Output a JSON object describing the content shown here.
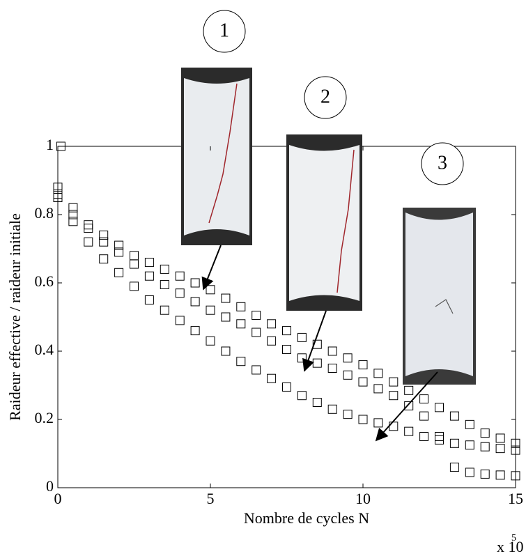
{
  "chart_data": {
    "type": "scatter",
    "xlabel": "Nombre de cycles N",
    "ylabel": "Raideur effective / raideur initiale",
    "x_multiplier": "x 10",
    "x_multiplier_exponent": "5",
    "annotations": [
      "1",
      "2",
      "3"
    ],
    "marker": "square",
    "color": "#000000",
    "xlim": [
      0,
      15
    ],
    "ylim": [
      0,
      1
    ],
    "xticks": [
      0,
      5,
      10,
      15
    ],
    "yticks": [
      0,
      0.2,
      0.4,
      0.6,
      0.8,
      1
    ],
    "series": [
      {
        "x": [
          0.1
        ],
        "values": [
          1
        ]
      },
      {
        "x": [
          0,
          0.5,
          1,
          1.5,
          2,
          2.5,
          3,
          3.5,
          4,
          4.5,
          5,
          5.5,
          6,
          6.5,
          7,
          7.5,
          8,
          8.5,
          9,
          9.5,
          10,
          10.5,
          11,
          11.5,
          12,
          12.5,
          13,
          13.5,
          14,
          14.5,
          15
        ],
        "values": [
          0.88,
          0.82,
          0.77,
          0.74,
          0.71,
          0.68,
          0.66,
          0.64,
          0.62,
          0.6,
          0.58,
          0.555,
          0.53,
          0.505,
          0.48,
          0.46,
          0.44,
          0.42,
          0.4,
          0.38,
          0.36,
          0.335,
          0.31,
          0.285,
          0.26,
          0.235,
          0.21,
          0.185,
          0.16,
          0.145,
          0.13
        ]
      },
      {
        "x": [
          0,
          0.5,
          1,
          1.5,
          2,
          2.5,
          3,
          3.5,
          4,
          4.5,
          5,
          5.5,
          6,
          6.5,
          7,
          7.5,
          8,
          8.5,
          9,
          9.5,
          10,
          10.5,
          11,
          11.5,
          12,
          12.5,
          13,
          13.5,
          14,
          14.5,
          15
        ],
        "values": [
          0.86,
          0.8,
          0.76,
          0.72,
          0.69,
          0.655,
          0.62,
          0.595,
          0.57,
          0.545,
          0.52,
          0.5,
          0.48,
          0.455,
          0.43,
          0.405,
          0.38,
          0.365,
          0.35,
          0.33,
          0.31,
          0.29,
          0.27,
          0.24,
          0.21,
          0.15,
          0.06,
          0.045,
          0.04,
          0.037,
          0.035
        ]
      },
      {
        "x": [
          0,
          0.5,
          1,
          1.5,
          2,
          2.5,
          3,
          3.5,
          4,
          4.5,
          5,
          5.5,
          6,
          6.5,
          7,
          7.5,
          8,
          8.5,
          9,
          9.5,
          10,
          10.5,
          11,
          11.5,
          12,
          12.5,
          13,
          13.5,
          14,
          14.5,
          15
        ],
        "values": [
          0.85,
          0.78,
          0.72,
          0.67,
          0.63,
          0.59,
          0.55,
          0.52,
          0.49,
          0.46,
          0.43,
          0.4,
          0.37,
          0.345,
          0.32,
          0.295,
          0.27,
          0.25,
          0.23,
          0.215,
          0.2,
          0.19,
          0.18,
          0.165,
          0.15,
          0.14,
          0.13,
          0.125,
          0.12,
          0.115,
          0.11
        ]
      }
    ]
  }
}
